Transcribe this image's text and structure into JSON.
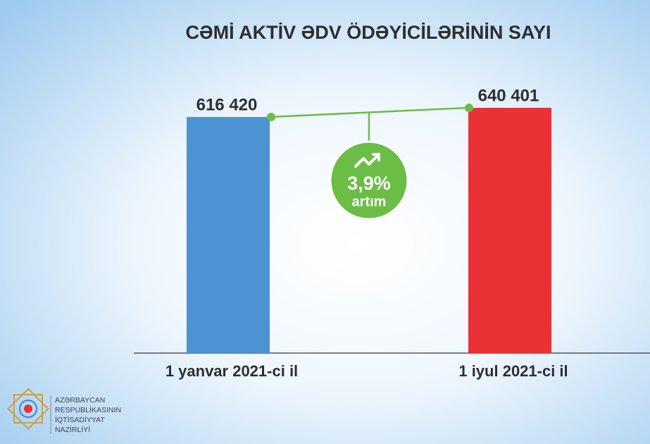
{
  "chart_data": {
    "type": "bar",
    "title": "CƏMİ AKTİV ƏDV ÖDƏYİCİLƏRİNİN SAYI",
    "categories": [
      "1 yanvar 2021-ci il",
      "1 iyul 2021-ci il"
    ],
    "values": [
      616420,
      640401
    ],
    "value_labels": [
      "616 420",
      "640 401"
    ],
    "colors": [
      "#4b93d3",
      "#e93136"
    ],
    "annotation": {
      "change": "3,9%",
      "note": "artım"
    }
  },
  "footer": {
    "logo_lines": [
      "AZƏRBAYCAN",
      "RESPUBLİKASININ",
      "İQTİSADİYYAT",
      "NAZİRLİYİ"
    ]
  }
}
